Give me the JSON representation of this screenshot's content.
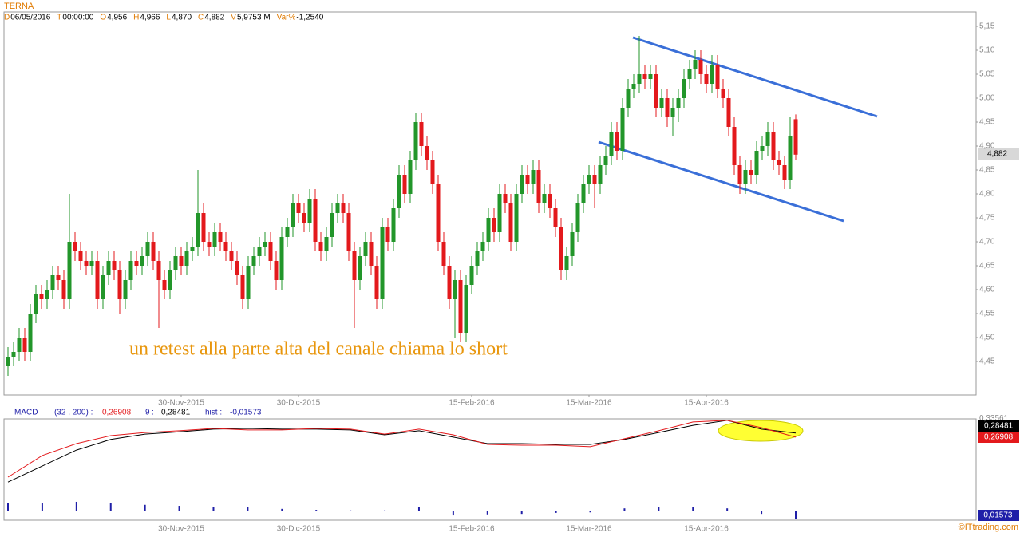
{
  "chart_data": {
    "type": "candlestick",
    "title": "TERNA",
    "header": [
      {
        "key": "D",
        "value": "06/05/2016"
      },
      {
        "key": "T",
        "value": "00:00:00"
      },
      {
        "key": "O",
        "value": "4,956"
      },
      {
        "key": "H",
        "value": "4,966"
      },
      {
        "key": "L",
        "value": "4,870"
      },
      {
        "key": "C",
        "value": "4,882"
      },
      {
        "key": "V",
        "value": "5,9753 M"
      },
      {
        "key": "Var%",
        "value": "-1,2540"
      }
    ],
    "last_price_label": "4,882",
    "annotation": "un retest alla parte alta del canale chiama lo short",
    "watermark": "©ITtrading.com",
    "up_color": "#22962a",
    "down_color": "#e3191c",
    "candles": [
      [
        4.44,
        4.48,
        4.42,
        4.46
      ],
      [
        4.46,
        4.49,
        4.44,
        4.47
      ],
      [
        4.47,
        4.52,
        4.45,
        4.5
      ],
      [
        4.5,
        4.52,
        4.45,
        4.47
      ],
      [
        4.47,
        4.57,
        4.45,
        4.55
      ],
      [
        4.55,
        4.61,
        4.53,
        4.59
      ],
      [
        4.59,
        4.61,
        4.56,
        4.58
      ],
      [
        4.58,
        4.62,
        4.56,
        4.6
      ],
      [
        4.6,
        4.65,
        4.58,
        4.63
      ],
      [
        4.63,
        4.65,
        4.6,
        4.62
      ],
      [
        4.62,
        4.64,
        4.56,
        4.58
      ],
      [
        4.58,
        4.8,
        4.56,
        4.7
      ],
      [
        4.7,
        4.72,
        4.66,
        4.68
      ],
      [
        4.68,
        4.7,
        4.64,
        4.66
      ],
      [
        4.66,
        4.68,
        4.63,
        4.65
      ],
      [
        4.65,
        4.68,
        4.63,
        4.66
      ],
      [
        4.66,
        4.68,
        4.56,
        4.58
      ],
      [
        4.58,
        4.65,
        4.56,
        4.63
      ],
      [
        4.63,
        4.68,
        4.61,
        4.66
      ],
      [
        4.66,
        4.68,
        4.62,
        4.64
      ],
      [
        4.64,
        4.66,
        4.55,
        4.58
      ],
      [
        4.58,
        4.64,
        4.56,
        4.62
      ],
      [
        4.62,
        4.68,
        4.6,
        4.66
      ],
      [
        4.66,
        4.68,
        4.63,
        4.65
      ],
      [
        4.65,
        4.69,
        4.63,
        4.67
      ],
      [
        4.67,
        4.72,
        4.65,
        4.7
      ],
      [
        4.7,
        4.72,
        4.64,
        4.66
      ],
      [
        4.66,
        4.68,
        4.52,
        4.62
      ],
      [
        4.62,
        4.64,
        4.58,
        4.6
      ],
      [
        4.6,
        4.66,
        4.58,
        4.64
      ],
      [
        4.64,
        4.69,
        4.62,
        4.67
      ],
      [
        4.67,
        4.69,
        4.63,
        4.65
      ],
      [
        4.65,
        4.7,
        4.63,
        4.68
      ],
      [
        4.68,
        4.71,
        4.66,
        4.69
      ],
      [
        4.69,
        4.85,
        4.67,
        4.76
      ],
      [
        4.76,
        4.78,
        4.68,
        4.7
      ],
      [
        4.7,
        4.72,
        4.67,
        4.69
      ],
      [
        4.69,
        4.74,
        4.67,
        4.72
      ],
      [
        4.72,
        4.74,
        4.68,
        4.7
      ],
      [
        4.7,
        4.72,
        4.66,
        4.68
      ],
      [
        4.68,
        4.7,
        4.64,
        4.66
      ],
      [
        4.66,
        4.68,
        4.61,
        4.63
      ],
      [
        4.63,
        4.65,
        4.56,
        4.58
      ],
      [
        4.58,
        4.67,
        4.56,
        4.65
      ],
      [
        4.65,
        4.69,
        4.63,
        4.67
      ],
      [
        4.67,
        4.71,
        4.65,
        4.69
      ],
      [
        4.69,
        4.72,
        4.67,
        4.7
      ],
      [
        4.7,
        4.72,
        4.64,
        4.66
      ],
      [
        4.66,
        4.68,
        4.6,
        4.62
      ],
      [
        4.62,
        4.73,
        4.6,
        4.71
      ],
      [
        4.71,
        4.75,
        4.69,
        4.73
      ],
      [
        4.73,
        4.8,
        4.71,
        4.78
      ],
      [
        4.78,
        4.8,
        4.74,
        4.76
      ],
      [
        4.76,
        4.78,
        4.72,
        4.74
      ],
      [
        4.74,
        4.81,
        4.72,
        4.79
      ],
      [
        4.79,
        4.81,
        4.68,
        4.7
      ],
      [
        4.7,
        4.72,
        4.66,
        4.68
      ],
      [
        4.68,
        4.73,
        4.66,
        4.71
      ],
      [
        4.71,
        4.78,
        4.69,
        4.76
      ],
      [
        4.76,
        4.8,
        4.74,
        4.78
      ],
      [
        4.78,
        4.8,
        4.74,
        4.76
      ],
      [
        4.76,
        4.78,
        4.66,
        4.68
      ],
      [
        4.68,
        4.7,
        4.52,
        4.62
      ],
      [
        4.62,
        4.69,
        4.6,
        4.67
      ],
      [
        4.67,
        4.72,
        4.65,
        4.7
      ],
      [
        4.7,
        4.72,
        4.63,
        4.65
      ],
      [
        4.65,
        4.67,
        4.56,
        4.58
      ],
      [
        4.58,
        4.75,
        4.56,
        4.73
      ],
      [
        4.73,
        4.75,
        4.68,
        4.7
      ],
      [
        4.7,
        4.79,
        4.68,
        4.77
      ],
      [
        4.77,
        4.86,
        4.75,
        4.84
      ],
      [
        4.84,
        4.86,
        4.78,
        4.8
      ],
      [
        4.8,
        4.89,
        4.78,
        4.87
      ],
      [
        4.87,
        4.97,
        4.85,
        4.95
      ],
      [
        4.95,
        4.97,
        4.88,
        4.9
      ],
      [
        4.9,
        4.92,
        4.85,
        4.87
      ],
      [
        4.87,
        4.89,
        4.8,
        4.82
      ],
      [
        4.82,
        4.84,
        4.68,
        4.7
      ],
      [
        4.7,
        4.72,
        4.63,
        4.65
      ],
      [
        4.65,
        4.67,
        4.56,
        4.58
      ],
      [
        4.58,
        4.64,
        4.5,
        4.62
      ],
      [
        4.62,
        4.64,
        4.49,
        4.51
      ],
      [
        4.51,
        4.63,
        4.49,
        4.61
      ],
      [
        4.61,
        4.67,
        4.59,
        4.65
      ],
      [
        4.65,
        4.7,
        4.63,
        4.68
      ],
      [
        4.68,
        4.72,
        4.66,
        4.7
      ],
      [
        4.7,
        4.77,
        4.68,
        4.75
      ],
      [
        4.75,
        4.77,
        4.7,
        4.72
      ],
      [
        4.72,
        4.82,
        4.7,
        4.8
      ],
      [
        4.8,
        4.82,
        4.76,
        4.78
      ],
      [
        4.78,
        4.8,
        4.68,
        4.7
      ],
      [
        4.7,
        4.82,
        4.68,
        4.8
      ],
      [
        4.8,
        4.86,
        4.78,
        4.84
      ],
      [
        4.84,
        4.86,
        4.8,
        4.82
      ],
      [
        4.82,
        4.87,
        4.8,
        4.85
      ],
      [
        4.85,
        4.87,
        4.76,
        4.78
      ],
      [
        4.78,
        4.82,
        4.76,
        4.8
      ],
      [
        4.8,
        4.82,
        4.75,
        4.77
      ],
      [
        4.77,
        4.79,
        4.71,
        4.73
      ],
      [
        4.73,
        4.75,
        4.62,
        4.64
      ],
      [
        4.64,
        4.69,
        4.62,
        4.67
      ],
      [
        4.67,
        4.74,
        4.65,
        4.72
      ],
      [
        4.72,
        4.8,
        4.7,
        4.78
      ],
      [
        4.78,
        4.84,
        4.76,
        4.82
      ],
      [
        4.82,
        4.86,
        4.8,
        4.84
      ],
      [
        4.84,
        4.86,
        4.77,
        4.82
      ],
      [
        4.82,
        4.88,
        4.8,
        4.86
      ],
      [
        4.86,
        4.9,
        4.84,
        4.88
      ],
      [
        4.88,
        4.95,
        4.86,
        4.93
      ],
      [
        4.93,
        4.95,
        4.87,
        4.89
      ],
      [
        4.89,
        5.0,
        4.87,
        4.98
      ],
      [
        4.98,
        5.04,
        4.96,
        5.02
      ],
      [
        5.02,
        5.05,
        5.0,
        5.03
      ],
      [
        5.03,
        5.13,
        5.01,
        5.05
      ],
      [
        5.05,
        5.07,
        5.02,
        5.04
      ],
      [
        5.04,
        5.07,
        5.02,
        5.05
      ],
      [
        5.05,
        5.07,
        4.96,
        4.98
      ],
      [
        4.98,
        5.02,
        4.96,
        5.0
      ],
      [
        5.0,
        5.02,
        4.94,
        4.96
      ],
      [
        4.96,
        5.0,
        4.92,
        4.98
      ],
      [
        4.98,
        5.02,
        4.95,
        5.0
      ],
      [
        5.0,
        5.06,
        4.98,
        5.04
      ],
      [
        5.04,
        5.08,
        5.02,
        5.06
      ],
      [
        5.06,
        5.1,
        5.04,
        5.08
      ],
      [
        5.08,
        5.1,
        5.03,
        5.05
      ],
      [
        5.05,
        5.07,
        5.01,
        5.03
      ],
      [
        5.03,
        5.09,
        5.01,
        5.07
      ],
      [
        5.07,
        5.09,
        5.0,
        5.02
      ],
      [
        5.02,
        5.04,
        4.98,
        5.0
      ],
      [
        5.0,
        5.02,
        4.92,
        4.94
      ],
      [
        4.94,
        4.96,
        4.84,
        4.86
      ],
      [
        4.86,
        4.88,
        4.8,
        4.82
      ],
      [
        4.82,
        4.87,
        4.8,
        4.85
      ],
      [
        4.85,
        4.87,
        4.82,
        4.84
      ],
      [
        4.84,
        4.91,
        4.82,
        4.89
      ],
      [
        4.89,
        4.92,
        4.87,
        4.9
      ],
      [
        4.9,
        4.95,
        4.88,
        4.93
      ],
      [
        4.93,
        4.95,
        4.85,
        4.87
      ],
      [
        4.87,
        4.89,
        4.84,
        4.86
      ],
      [
        4.86,
        4.88,
        4.81,
        4.83
      ],
      [
        4.83,
        4.96,
        4.81,
        4.92
      ],
      [
        4.956,
        4.966,
        4.87,
        4.882
      ]
    ],
    "ylim": [
      4.38,
      5.18
    ],
    "yticks": [
      {
        "value": 5.15,
        "label": "5,15"
      },
      {
        "value": 5.1,
        "label": "5,10"
      },
      {
        "value": 5.05,
        "label": "5,05"
      },
      {
        "value": 5.0,
        "label": "5,00"
      },
      {
        "value": 4.95,
        "label": "4,95"
      },
      {
        "value": 4.9,
        "label": "4,90"
      },
      {
        "value": 4.85,
        "label": "4,85"
      },
      {
        "value": 4.8,
        "label": "4,80"
      },
      {
        "value": 4.75,
        "label": "4,75"
      },
      {
        "value": 4.7,
        "label": "4,70"
      },
      {
        "value": 4.65,
        "label": "4,65"
      },
      {
        "value": 4.6,
        "label": "4,60"
      },
      {
        "value": 4.55,
        "label": "4,55"
      },
      {
        "value": 4.5,
        "label": "4,50"
      },
      {
        "value": 4.45,
        "label": "4,45"
      }
    ],
    "xticks": [
      {
        "value": 31,
        "label": "30-Nov-2015"
      },
      {
        "value": 52,
        "label": "30-Dic-2015"
      },
      {
        "value": 83,
        "label": "15-Feb-2016"
      },
      {
        "value": 104,
        "label": "15-Mar-2016"
      },
      {
        "value": 125,
        "label": "15-Apr-2016"
      }
    ],
    "macd": {
      "params": "(32 , 200) :",
      "macd_label": "0,26908",
      "signal_label": "0,28481",
      "hist_name": "hist :",
      "hist_label": "-0,01573",
      "ylim": [
        -0.05,
        0.34
      ],
      "yticks": [
        {
          "value": 0.33561,
          "label": "0,33561"
        }
      ],
      "series": [
        {
          "name": "MACD",
          "color": "#e3191c",
          "values": [
            0.114,
            0.198,
            0.244,
            0.275,
            0.287,
            0.294,
            0.303,
            0.297,
            0.297,
            0.303,
            0.3,
            0.281,
            0.3,
            0.278,
            0.241,
            0.238,
            0.238,
            0.232,
            0.263,
            0.294,
            0.328,
            0.334,
            0.306,
            0.26908
          ]
        },
        {
          "name": "9",
          "color": "#000000",
          "values": [
            0.095,
            0.157,
            0.219,
            0.26,
            0.281,
            0.29,
            0.3,
            0.303,
            0.3,
            0.3,
            0.297,
            0.278,
            0.294,
            0.269,
            0.244,
            0.244,
            0.241,
            0.241,
            0.26,
            0.287,
            0.315,
            0.334,
            0.3,
            0.28481
          ]
        }
      ],
      "hist_color": "#1f1fa8",
      "hist_ylim": [
        -0.03,
        0.03
      ],
      "hist": [
        0.016,
        0.017,
        0.019,
        0.016,
        0.013,
        0.011,
        0.009,
        0.008,
        0.005,
        0.003,
        0.002,
        0.002,
        0.008,
        -0.008,
        -0.006,
        -0.005,
        -0.003,
        -0.002,
        0.006,
        0.009,
        0.009,
        0.006,
        -0.005,
        -0.01573
      ]
    }
  }
}
